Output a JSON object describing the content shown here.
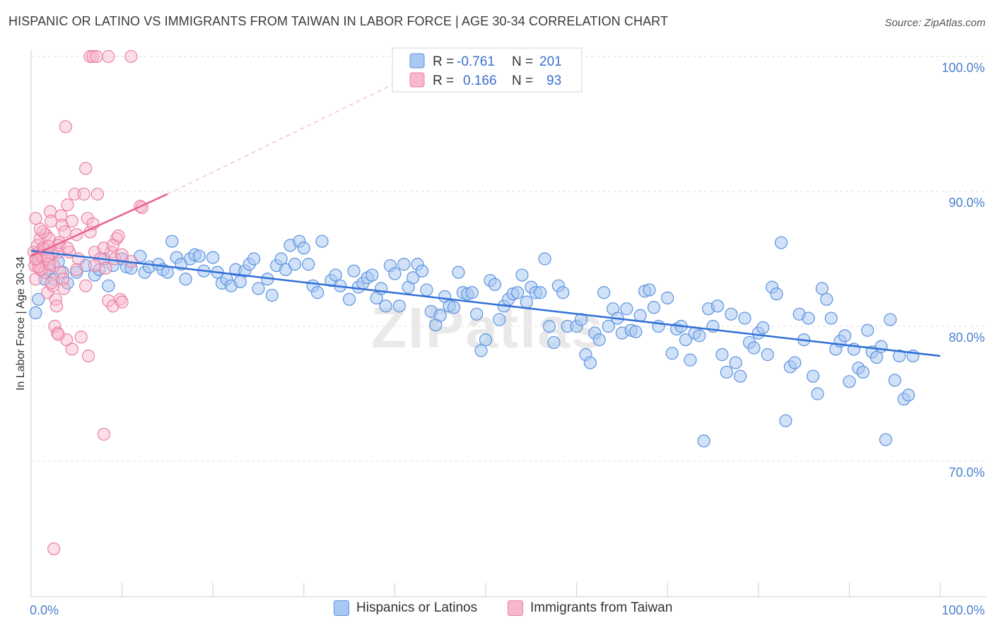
{
  "title": "HISPANIC OR LATINO VS IMMIGRANTS FROM TAIWAN IN LABOR FORCE | AGE 30-34 CORRELATION CHART",
  "source": "Source: ZipAtlas.com",
  "watermark": "ZIPatlas",
  "colors": {
    "blue_fill": "#a9c8f2",
    "blue_stroke": "#5b93df",
    "blue_line": "#2f6fd6",
    "pink_fill": "#f7b8cc",
    "pink_stroke": "#ec7fa3",
    "pink_line": "#e8628e",
    "grid": "#dddddd",
    "axis_label": "#4a7fd0"
  },
  "stats_legend": [
    {
      "r_label": "R =",
      "r_value": "-0.761",
      "n_label": "N =",
      "n_value": "201"
    },
    {
      "r_label": "R =",
      "r_value": "0.166",
      "n_label": "N =",
      "n_value": "93"
    }
  ],
  "chart_data": {
    "type": "scatter",
    "ylabel": "In Labor Force | Age 30-34",
    "xlim": [
      0,
      100
    ],
    "ylim": [
      60.5,
      100.5
    ],
    "x_tick_labels": [
      {
        "value": 0,
        "label": "0.0%"
      },
      {
        "value": 100,
        "label": "100.0%"
      }
    ],
    "y_tick_labels": [
      {
        "value": 100,
        "label": "100.0%"
      },
      {
        "value": 90,
        "label": "90.0%"
      },
      {
        "value": 80,
        "label": "80.0%"
      },
      {
        "value": 70,
        "label": "70.0%"
      }
    ],
    "grid": "horizontal dashed",
    "legend_position": "top-center",
    "series": [
      {
        "name": "Hispanics or Latinos",
        "color": "#5b93df",
        "trend": {
          "x0": 0,
          "y0": 85.6,
          "x1": 100,
          "y1": 77.8
        },
        "points": [
          [
            0.5,
            81.0
          ],
          [
            0.8,
            82.0
          ],
          [
            1.5,
            83.5
          ],
          [
            2,
            84.2
          ],
          [
            2.5,
            83.5
          ],
          [
            3,
            84.8
          ],
          [
            3.5,
            84.0
          ],
          [
            4,
            83.2
          ],
          [
            5,
            84.0
          ],
          [
            6,
            84.5
          ],
          [
            7,
            83.8
          ],
          [
            7.5,
            84.2
          ],
          [
            8,
            85.0
          ],
          [
            8.5,
            83.0
          ],
          [
            9,
            84.5
          ],
          [
            10,
            85.0
          ],
          [
            10.5,
            84.4
          ],
          [
            11,
            84.3
          ],
          [
            12,
            85.2
          ],
          [
            12.5,
            84.0
          ],
          [
            13,
            84.4
          ],
          [
            14,
            84.6
          ],
          [
            14.5,
            84.2
          ],
          [
            15,
            84.0
          ],
          [
            15.5,
            86.3
          ],
          [
            16,
            85.1
          ],
          [
            16.5,
            84.6
          ],
          [
            17,
            83.5
          ],
          [
            17.5,
            85.0
          ],
          [
            18,
            85.3
          ],
          [
            18.5,
            85.2
          ],
          [
            19,
            84.1
          ],
          [
            20,
            85.1
          ],
          [
            20.5,
            84.0
          ],
          [
            21,
            83.2
          ],
          [
            21.5,
            83.5
          ],
          [
            22,
            83.0
          ],
          [
            22.5,
            84.2
          ],
          [
            23,
            83.3
          ],
          [
            23.5,
            84.1
          ],
          [
            24,
            84.6
          ],
          [
            24.5,
            85.0
          ],
          [
            25,
            82.8
          ],
          [
            26,
            83.5
          ],
          [
            26.5,
            82.3
          ],
          [
            27,
            84.5
          ],
          [
            27.5,
            85.0
          ],
          [
            28,
            84.2
          ],
          [
            28.5,
            86.0
          ],
          [
            29,
            84.6
          ],
          [
            29.5,
            86.3
          ],
          [
            30,
            85.8
          ],
          [
            30.5,
            84.6
          ],
          [
            31,
            83.0
          ],
          [
            31.5,
            82.5
          ],
          [
            32,
            86.3
          ],
          [
            33,
            83.4
          ],
          [
            33.5,
            83.8
          ],
          [
            34,
            83.0
          ],
          [
            35,
            82.0
          ],
          [
            35.5,
            84.1
          ],
          [
            36,
            82.9
          ],
          [
            36.5,
            83.2
          ],
          [
            37,
            83.6
          ],
          [
            37.5,
            83.8
          ],
          [
            38,
            82.1
          ],
          [
            38.5,
            82.8
          ],
          [
            39,
            81.5
          ],
          [
            39.5,
            84.5
          ],
          [
            40,
            83.9
          ],
          [
            40.5,
            81.5
          ],
          [
            41,
            84.6
          ],
          [
            41.5,
            82.9
          ],
          [
            42,
            83.6
          ],
          [
            42.5,
            84.6
          ],
          [
            43,
            84.1
          ],
          [
            43.5,
            82.7
          ],
          [
            44,
            81.1
          ],
          [
            44.5,
            80.1
          ],
          [
            45,
            80.8
          ],
          [
            45.5,
            82.2
          ],
          [
            46,
            81.5
          ],
          [
            46.5,
            81.4
          ],
          [
            47,
            84.0
          ],
          [
            47.5,
            82.5
          ],
          [
            48,
            82.4
          ],
          [
            48.5,
            82.5
          ],
          [
            49,
            80.9
          ],
          [
            49.5,
            78.2
          ],
          [
            50,
            79.0
          ],
          [
            50.5,
            83.4
          ],
          [
            51,
            83.1
          ],
          [
            51.5,
            80.5
          ],
          [
            52,
            81.5
          ],
          [
            52.5,
            82.0
          ],
          [
            53,
            82.4
          ],
          [
            53.5,
            82.5
          ],
          [
            54,
            83.8
          ],
          [
            54.5,
            81.8
          ],
          [
            55,
            82.9
          ],
          [
            55.5,
            82.5
          ],
          [
            56,
            82.5
          ],
          [
            56.5,
            85.0
          ],
          [
            57,
            80.0
          ],
          [
            57.5,
            78.8
          ],
          [
            58,
            83.0
          ],
          [
            58.5,
            82.5
          ],
          [
            59,
            80.0
          ],
          [
            60,
            80.0
          ],
          [
            60.5,
            80.5
          ],
          [
            61,
            77.9
          ],
          [
            61.5,
            77.3
          ],
          [
            62,
            79.5
          ],
          [
            62.5,
            79.0
          ],
          [
            63,
            82.5
          ],
          [
            63.5,
            80.0
          ],
          [
            64,
            81.3
          ],
          [
            64.5,
            80.6
          ],
          [
            65,
            79.5
          ],
          [
            65.5,
            81.3
          ],
          [
            66,
            79.7
          ],
          [
            66.5,
            79.6
          ],
          [
            67,
            80.8
          ],
          [
            67.5,
            82.6
          ],
          [
            68,
            82.7
          ],
          [
            68.5,
            81.4
          ],
          [
            69,
            80.0
          ],
          [
            70,
            82.1
          ],
          [
            70.5,
            78.0
          ],
          [
            71,
            79.8
          ],
          [
            71.5,
            80.0
          ],
          [
            72,
            79.0
          ],
          [
            72.5,
            77.5
          ],
          [
            73,
            79.5
          ],
          [
            73.5,
            79.3
          ],
          [
            74,
            71.5
          ],
          [
            74.5,
            81.3
          ],
          [
            75,
            80.0
          ],
          [
            75.5,
            81.5
          ],
          [
            76,
            77.9
          ],
          [
            76.5,
            76.6
          ],
          [
            77,
            80.9
          ],
          [
            77.5,
            77.3
          ],
          [
            78,
            76.3
          ],
          [
            78.5,
            80.6
          ],
          [
            79,
            78.8
          ],
          [
            79.5,
            78.4
          ],
          [
            80,
            79.5
          ],
          [
            80.5,
            79.9
          ],
          [
            81,
            77.9
          ],
          [
            81.5,
            82.9
          ],
          [
            82,
            82.4
          ],
          [
            82.5,
            86.2
          ],
          [
            83,
            73.0
          ],
          [
            83.5,
            77.0
          ],
          [
            84,
            77.3
          ],
          [
            84.5,
            80.9
          ],
          [
            85,
            79.0
          ],
          [
            85.5,
            80.6
          ],
          [
            86,
            76.3
          ],
          [
            86.5,
            75.0
          ],
          [
            87,
            82.8
          ],
          [
            87.5,
            82.0
          ],
          [
            88,
            80.6
          ],
          [
            88.5,
            78.3
          ],
          [
            89,
            78.9
          ],
          [
            89.5,
            79.3
          ],
          [
            90,
            75.9
          ],
          [
            90.5,
            78.3
          ],
          [
            91,
            76.9
          ],
          [
            91.5,
            76.6
          ],
          [
            92,
            79.7
          ],
          [
            92.5,
            78.1
          ],
          [
            93,
            77.7
          ],
          [
            93.5,
            78.5
          ],
          [
            94,
            71.6
          ],
          [
            94.5,
            80.5
          ],
          [
            95,
            76.0
          ],
          [
            95.5,
            77.8
          ],
          [
            96,
            74.6
          ],
          [
            96.5,
            74.9
          ],
          [
            97,
            77.8
          ]
        ]
      },
      {
        "name": "Immigrants from Taiwan",
        "color": "#ec7fa3",
        "trend": {
          "x0": 0,
          "y0": 85.2,
          "x1": 15,
          "y1": 89.8,
          "dashed_to": {
            "x": 40,
            "y": 98.0
          }
        },
        "points": [
          [
            0.3,
            85.5
          ],
          [
            0.4,
            84.5
          ],
          [
            0.5,
            83.5
          ],
          [
            0.6,
            85.0
          ],
          [
            0.7,
            86.0
          ],
          [
            0.8,
            84.8
          ],
          [
            0.9,
            85.5
          ],
          [
            1.0,
            86.5
          ],
          [
            1.1,
            85.3
          ],
          [
            1.2,
            84.2
          ],
          [
            1.3,
            85.8
          ],
          [
            1.4,
            85.0
          ],
          [
            1.5,
            84.0
          ],
          [
            1.6,
            86.8
          ],
          [
            1.7,
            85.5
          ],
          [
            1.8,
            82.5
          ],
          [
            1.9,
            85.0
          ],
          [
            2.0,
            86.5
          ],
          [
            2.1,
            88.5
          ],
          [
            2.2,
            87.8
          ],
          [
            2.3,
            85.4
          ],
          [
            2.4,
            83.0
          ],
          [
            2.5,
            84.5
          ],
          [
            2.6,
            80.0
          ],
          [
            2.7,
            82.0
          ],
          [
            2.8,
            81.5
          ],
          [
            2.9,
            79.5
          ],
          [
            3.0,
            85.5
          ],
          [
            3.1,
            86.2
          ],
          [
            3.2,
            84.0
          ],
          [
            3.3,
            88.2
          ],
          [
            3.4,
            87.5
          ],
          [
            3.5,
            83.5
          ],
          [
            3.6,
            82.8
          ],
          [
            3.7,
            87.0
          ],
          [
            3.8,
            94.8
          ],
          [
            3.9,
            79.0
          ],
          [
            4.0,
            89.0
          ],
          [
            4.2,
            85.5
          ],
          [
            4.5,
            87.8
          ],
          [
            4.8,
            89.8
          ],
          [
            5.0,
            86.8
          ],
          [
            5.2,
            85.0
          ],
          [
            5.5,
            79.2
          ],
          [
            5.8,
            89.8
          ],
          [
            6.0,
            91.7
          ],
          [
            6.2,
            88.0
          ],
          [
            6.5,
            87.0
          ],
          [
            6.8,
            87.6
          ],
          [
            7.0,
            85.5
          ],
          [
            7.3,
            89.8
          ],
          [
            7.6,
            85.0
          ],
          [
            8.0,
            72.0
          ],
          [
            8.2,
            84.3
          ],
          [
            8.5,
            81.9
          ],
          [
            8.8,
            85.5
          ],
          [
            9.0,
            81.5
          ],
          [
            9.2,
            85.0
          ],
          [
            9.4,
            86.5
          ],
          [
            9.6,
            86.7
          ],
          [
            9.8,
            82.0
          ],
          [
            10.0,
            81.8
          ],
          [
            3.0,
            79.4
          ],
          [
            4.5,
            78.3
          ],
          [
            6.5,
            100.0
          ],
          [
            6.8,
            100.0
          ],
          [
            7.2,
            100.0
          ],
          [
            8.5,
            100.0
          ],
          [
            11.0,
            100.0
          ],
          [
            2.5,
            63.5
          ],
          [
            1.0,
            84.2
          ],
          [
            1.3,
            87.0
          ],
          [
            2.0,
            84.6
          ],
          [
            0.8,
            84.4
          ],
          [
            1.5,
            85.7
          ],
          [
            1.8,
            85.2
          ],
          [
            2.2,
            83.2
          ],
          [
            0.5,
            88.0
          ],
          [
            3.0,
            86.0
          ],
          [
            4.0,
            85.8
          ],
          [
            5.0,
            84.2
          ],
          [
            6.0,
            83.0
          ],
          [
            7.0,
            84.5
          ],
          [
            8.0,
            85.8
          ],
          [
            9.0,
            86.0
          ],
          [
            10.0,
            85.3
          ],
          [
            11.0,
            84.8
          ],
          [
            12.0,
            88.9
          ],
          [
            12.2,
            88.8
          ],
          [
            6.3,
            77.8
          ],
          [
            2.0,
            85.9
          ],
          [
            1.0,
            87.2
          ],
          [
            0.5,
            85.0
          ]
        ]
      }
    ]
  },
  "bottom_legend": [
    {
      "label": "Hispanics or Latinos"
    },
    {
      "label": "Immigrants from Taiwan"
    }
  ]
}
